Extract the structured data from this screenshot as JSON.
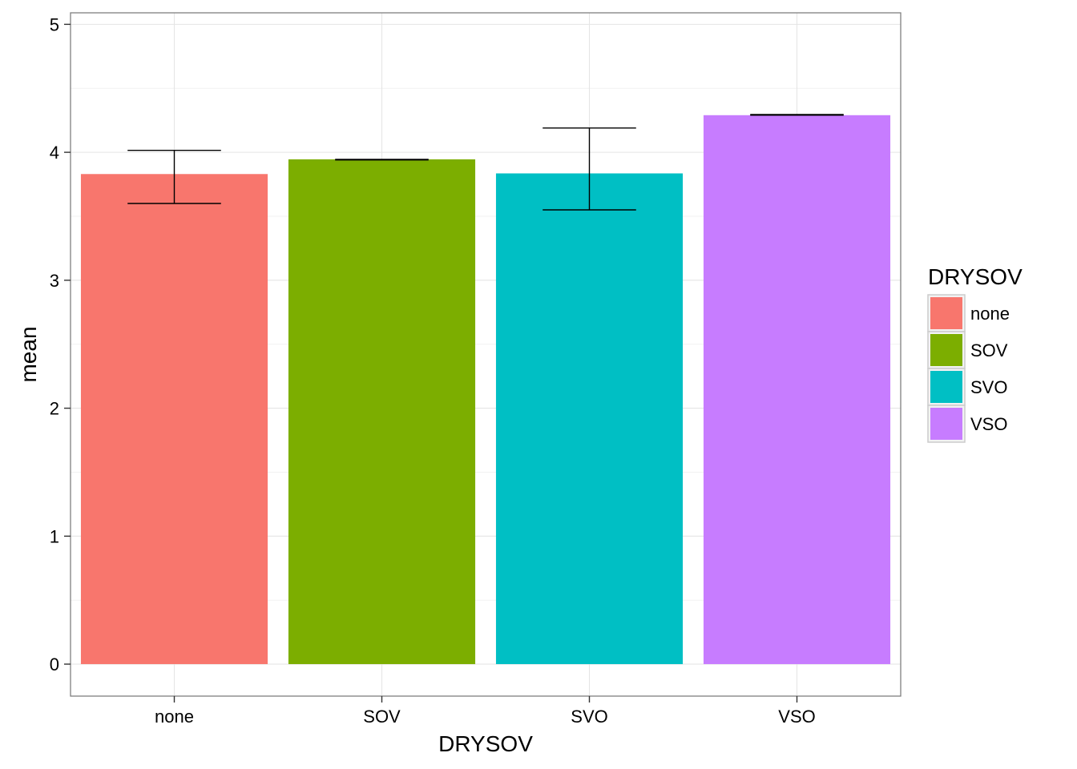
{
  "chart_data": {
    "type": "bar",
    "categories": [
      "none",
      "SOV",
      "SVO",
      "VSO"
    ],
    "values": [
      3.83,
      3.945,
      3.835,
      4.29
    ],
    "error_bars": [
      {
        "low": 3.6,
        "high": 4.015
      },
      {
        "low": 3.94,
        "high": 3.945
      },
      {
        "low": 3.55,
        "high": 4.19
      },
      {
        "low": 4.29,
        "high": 4.295
      }
    ],
    "colors": [
      "#F8766D",
      "#7CAE00",
      "#00BFC4",
      "#C77CFF"
    ],
    "xlabel": "DRYSOV",
    "ylabel": "mean",
    "ylim": [
      -0.25,
      5.09
    ],
    "yticks": [
      0,
      1,
      2,
      3,
      4,
      5
    ],
    "grid": true,
    "legend": {
      "title": "DRYSOV",
      "placement": "right",
      "entries": [
        "none",
        "SOV",
        "SVO",
        "VSO"
      ]
    }
  }
}
